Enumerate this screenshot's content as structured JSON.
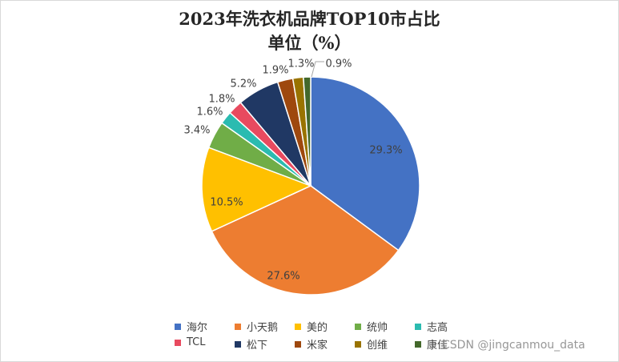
{
  "chart_data": {
    "type": "pie",
    "title": "2023年洗衣机品牌TOP10市占比",
    "subtitle": "单位（%）",
    "legend_position": "bottom",
    "slices": [
      {
        "name": "海尔",
        "value": 29.3,
        "label": "29.3%",
        "color": "#4472C4"
      },
      {
        "name": "小天鹅",
        "value": 27.6,
        "label": "27.6%",
        "color": "#ED7D31"
      },
      {
        "name": "美的",
        "value": 10.5,
        "label": "10.5%",
        "color": "#FFC000"
      },
      {
        "name": "统帅",
        "value": 3.4,
        "label": "3.4%",
        "color": "#70AD47"
      },
      {
        "name": "志高",
        "value": 1.6,
        "label": "1.6%",
        "color": "#2BBBB0"
      },
      {
        "name": "TCL",
        "value": 1.8,
        "label": "1.8%",
        "color": "#E84A5F"
      },
      {
        "name": "松下",
        "value": 5.2,
        "label": "5.2%",
        "color": "#203864"
      },
      {
        "name": "米家",
        "value": 1.9,
        "label": "1.9%",
        "color": "#9E480E"
      },
      {
        "name": "创维",
        "value": 1.3,
        "label": "1.3%",
        "color": "#997300"
      },
      {
        "name": "康佳",
        "value": 0.9,
        "label": "0.9%",
        "color": "#43682B"
      }
    ]
  },
  "watermark": "CSDN @jingcanmou_data"
}
